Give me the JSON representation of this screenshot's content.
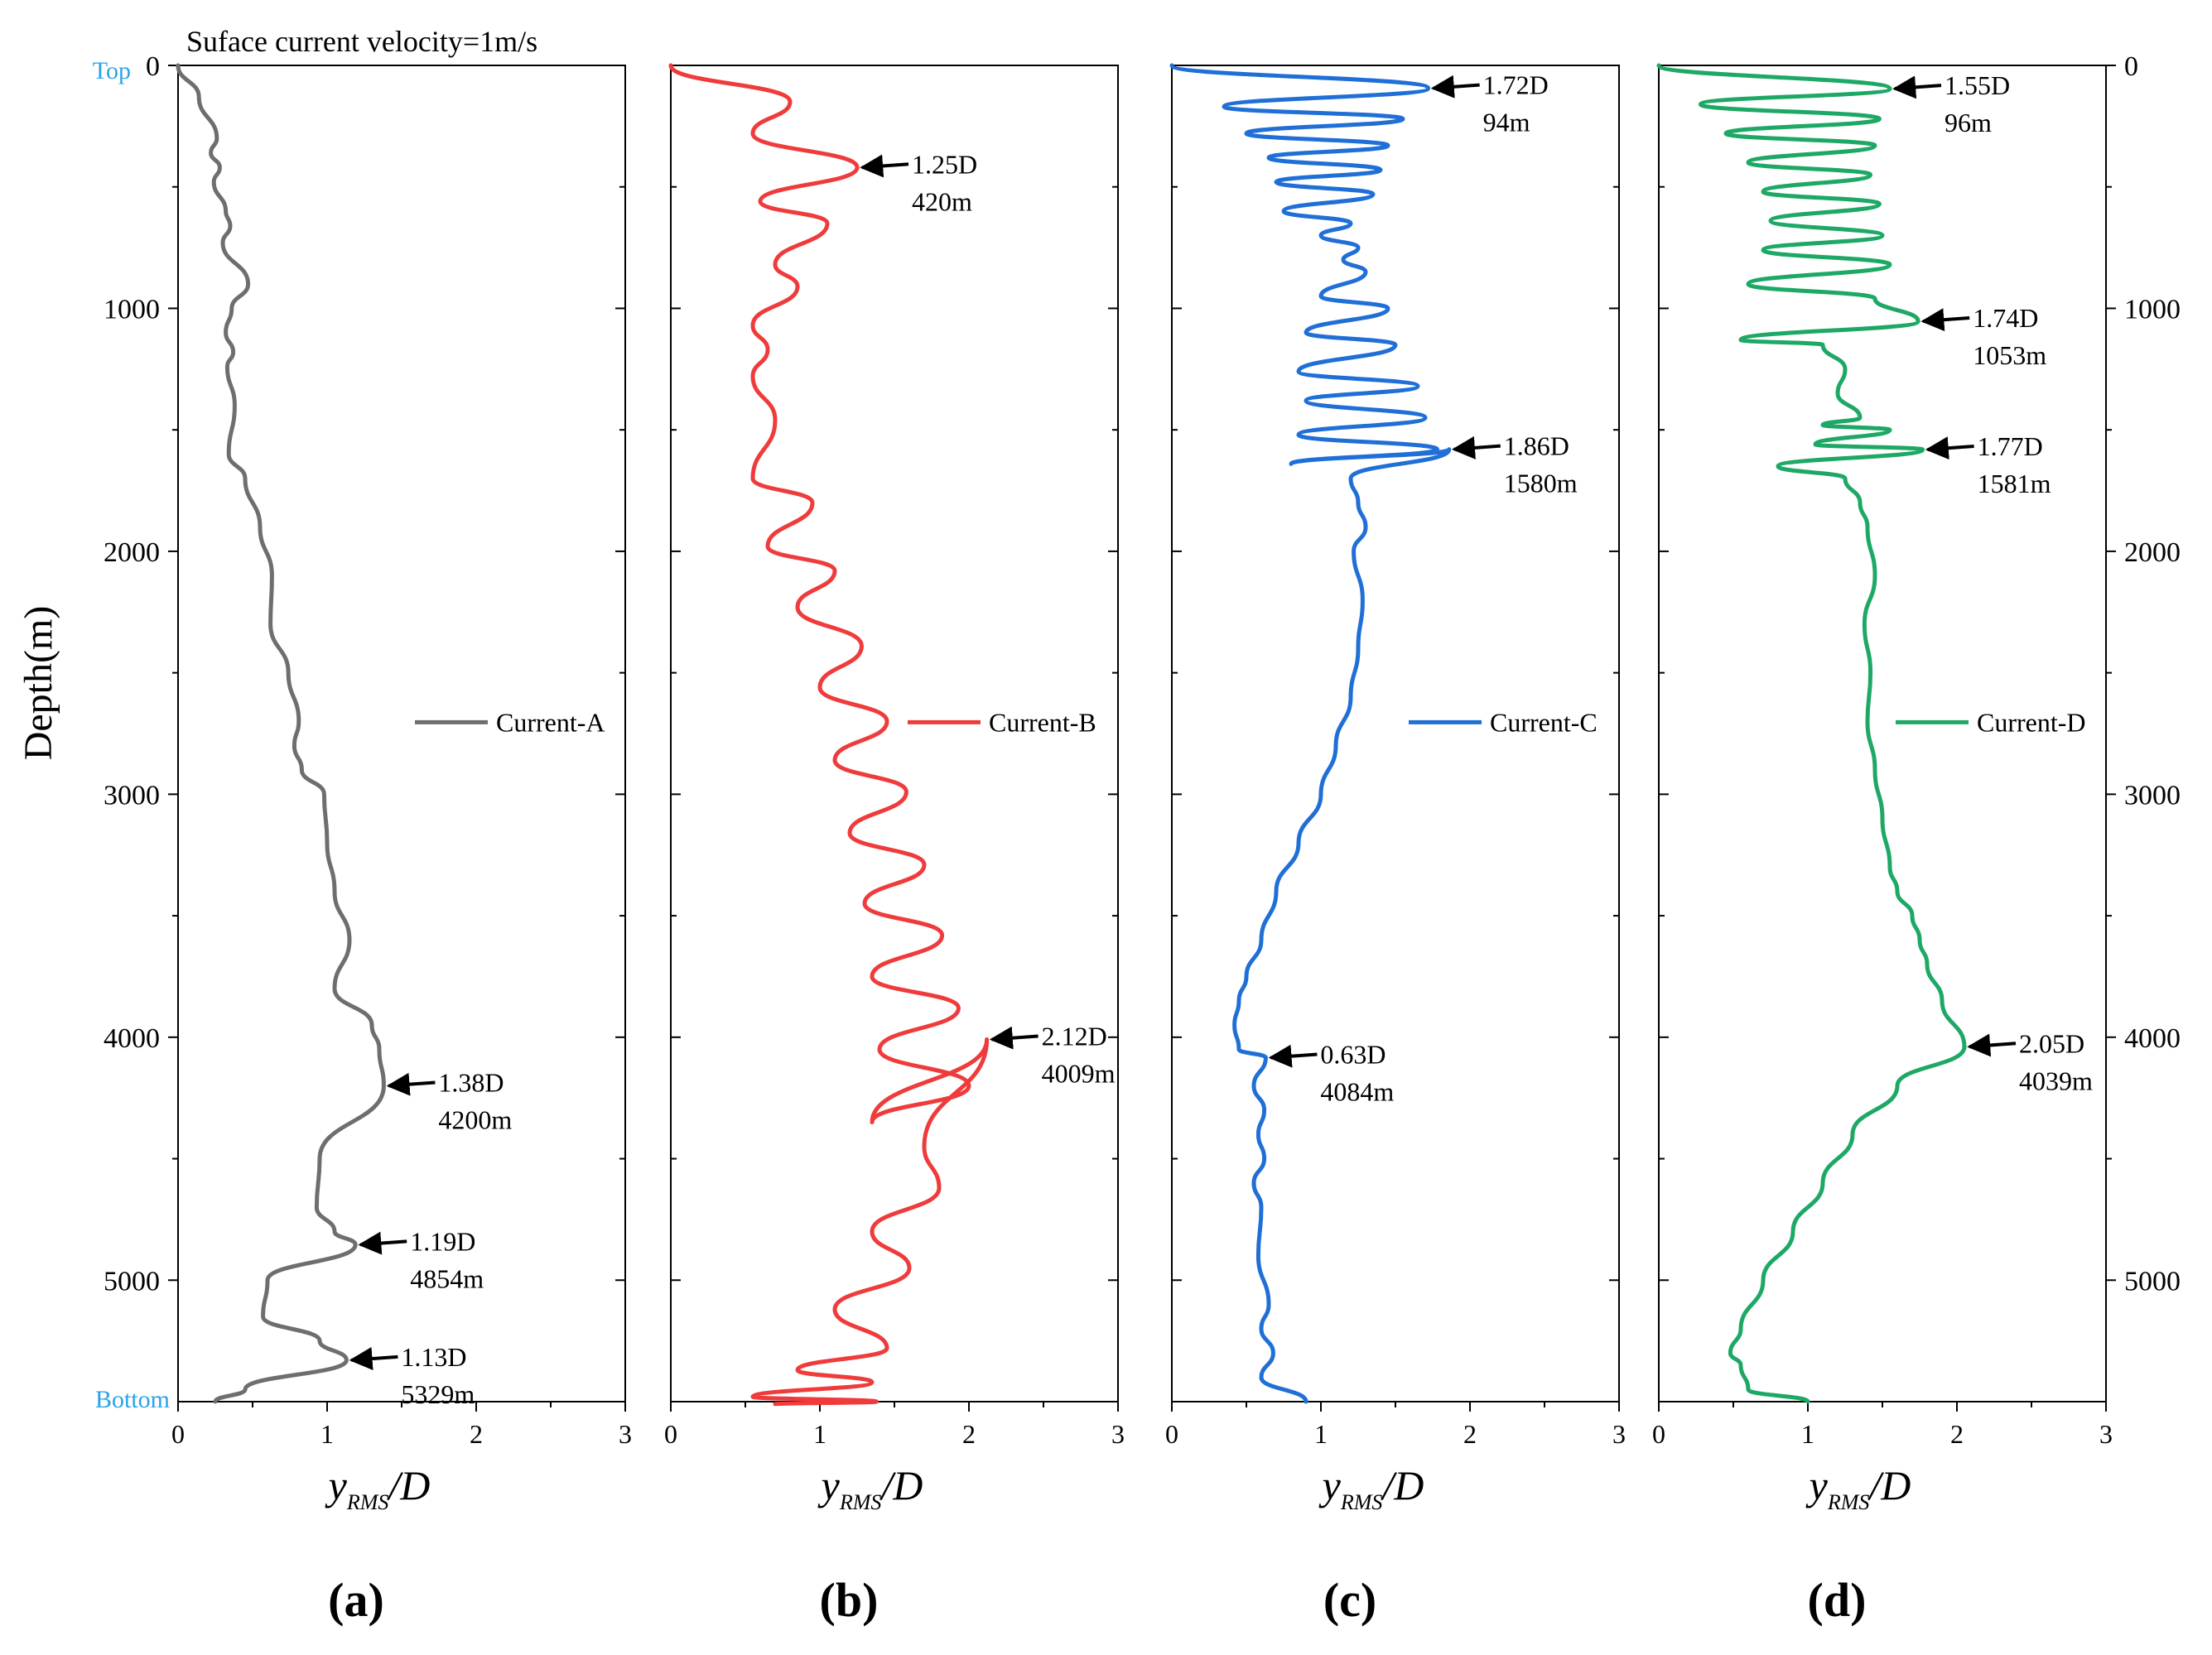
{
  "figure": {
    "title": "Suface current velocity=1m/s",
    "top_label": "Top",
    "bottom_label": "Bottom",
    "label_color": "#29a3e8",
    "ylabel": "Depth(m)"
  },
  "chart_data": [
    {
      "type": "line",
      "panel_label": "(a)",
      "xlabel_main": "y",
      "xlabel_sub": "RMS",
      "xlabel_tail": "/D",
      "xlim": [
        0,
        3
      ],
      "ylim": [
        0,
        5500
      ],
      "xticks": [
        "0",
        "1",
        "2",
        "3"
      ],
      "yticks": [
        "0",
        "1000",
        "2000",
        "3000",
        "4000",
        "5000"
      ],
      "legend": "Current-A",
      "color": "#6e6e6e",
      "series": [
        {
          "name": "Current-A",
          "x": [
            0,
            0.14,
            0.26,
            0.22,
            0.28,
            0.24,
            0.32,
            0.35,
            0.3,
            0.47,
            0.36,
            0.32,
            0.37,
            0.33,
            0.38,
            0.34,
            0.45,
            0.55,
            0.63,
            0.62,
            0.74,
            0.81,
            0.78,
            0.83,
            0.98,
            1.0,
            1.05,
            1.15,
            1.05,
            1.3,
            1.35,
            1.38,
            0.95,
            0.93,
            1.05,
            1.19,
            0.6,
            0.57,
            0.95,
            1.13,
            0.45,
            0.25
          ],
          "y": [
            0,
            130,
            300,
            360,
            420,
            480,
            600,
            660,
            730,
            900,
            1000,
            1100,
            1180,
            1240,
            1400,
            1600,
            1700,
            1900,
            2100,
            2300,
            2500,
            2700,
            2800,
            2900,
            3000,
            3200,
            3400,
            3600,
            3800,
            3950,
            4050,
            4200,
            4500,
            4700,
            4800,
            4854,
            5000,
            5150,
            5250,
            5329,
            5450,
            5500
          ]
        }
      ],
      "annotations": [
        {
          "x": 1.38,
          "y": 4200,
          "value": "1.38D",
          "depth": "4200m"
        },
        {
          "x": 1.19,
          "y": 4854,
          "value": "1.19D",
          "depth": "4854m"
        },
        {
          "x": 1.13,
          "y": 5329,
          "value": "1.13D",
          "depth": "5329m"
        }
      ]
    },
    {
      "type": "line",
      "panel_label": "(b)",
      "xlabel_main": "y",
      "xlabel_sub": "RMS",
      "xlabel_tail": "/D",
      "xlim": [
        0,
        3
      ],
      "ylim": [
        0,
        5500
      ],
      "xticks": [
        "0",
        "1",
        "2",
        "3"
      ],
      "yticks": [
        "0",
        "1000",
        "2000",
        "3000",
        "4000",
        "5000"
      ],
      "legend": "Current-B",
      "color": "#ef3b3b",
      "series": [
        {
          "name": "Current-B",
          "x": [
            0,
            0.8,
            0.55,
            1.25,
            0.6,
            1.05,
            0.7,
            0.85,
            0.55,
            0.65,
            0.55,
            0.7,
            0.55,
            0.95,
            0.65,
            1.1,
            0.85,
            1.28,
            1.0,
            1.45,
            1.1,
            1.58,
            1.2,
            1.7,
            1.3,
            1.82,
            1.35,
            1.93,
            1.4,
            2.0,
            1.35,
            2.12,
            1.7,
            1.8,
            1.35,
            1.6,
            1.1,
            1.45,
            0.85,
            1.35,
            0.55,
            1.38,
            0.7
          ],
          "y": [
            0,
            150,
            280,
            420,
            560,
            650,
            820,
            910,
            1070,
            1170,
            1280,
            1460,
            1700,
            1800,
            1980,
            2080,
            2230,
            2390,
            2560,
            2700,
            2860,
            2990,
            3160,
            3290,
            3450,
            3580,
            3750,
            3880,
            4050,
            4200,
            4350,
            4009,
            4450,
            4620,
            4800,
            4950,
            5120,
            5280,
            5370,
            5420,
            5480,
            5500,
            5510
          ]
        }
      ],
      "annotations": [
        {
          "x": 1.25,
          "y": 420,
          "value": "1.25D",
          "depth": "420m"
        },
        {
          "x": 2.12,
          "y": 4009,
          "value": "2.12D",
          "depth": "4009m"
        }
      ]
    },
    {
      "type": "line",
      "panel_label": "(c)",
      "xlabel_main": "y",
      "xlabel_sub": "RMS",
      "xlabel_tail": "/D",
      "xlim": [
        0,
        3
      ],
      "ylim": [
        0,
        5500
      ],
      "xticks": [
        "0",
        "1",
        "2",
        "3"
      ],
      "yticks": [
        "0",
        "1000",
        "2000",
        "3000",
        "4000",
        "5000"
      ],
      "legend": "Current-C",
      "color": "#1f6fd6",
      "series": [
        {
          "name": "Current-C",
          "x": [
            0,
            1.72,
            0.35,
            1.55,
            0.5,
            1.45,
            0.65,
            1.4,
            0.7,
            1.35,
            0.75,
            1.2,
            1.0,
            1.25,
            1.15,
            1.3,
            1.0,
            1.45,
            0.9,
            1.5,
            0.85,
            1.65,
            0.9,
            1.7,
            0.85,
            1.78,
            0.8,
            1.86,
            1.2,
            1.25,
            1.3,
            1.22,
            1.28,
            1.25,
            1.2,
            1.1,
            1.0,
            0.85,
            0.7,
            0.6,
            0.5,
            0.45,
            0.42,
            0.45,
            0.63,
            0.55,
            0.62,
            0.58,
            0.62,
            0.55,
            0.6,
            0.58,
            0.65,
            0.6,
            0.68,
            0.6,
            0.9
          ],
          "y": [
            0,
            94,
            170,
            220,
            280,
            330,
            380,
            430,
            480,
            530,
            600,
            650,
            700,
            750,
            800,
            850,
            950,
            1000,
            1100,
            1150,
            1260,
            1320,
            1380,
            1450,
            1520,
            1580,
            1640,
            1580,
            1700,
            1800,
            1900,
            2000,
            2200,
            2400,
            2600,
            2800,
            3000,
            3200,
            3400,
            3600,
            3750,
            3850,
            3950,
            4050,
            4084,
            4200,
            4300,
            4400,
            4500,
            4600,
            4700,
            4900,
            5100,
            5200,
            5300,
            5400,
            5500
          ]
        }
      ],
      "annotations": [
        {
          "x": 1.72,
          "y": 94,
          "value": "1.72D",
          "depth": "94m"
        },
        {
          "x": 1.86,
          "y": 1580,
          "value": "1.86D",
          "depth": "1580m"
        },
        {
          "x": 0.63,
          "y": 4084,
          "value": "0.63D",
          "depth": "4084m"
        }
      ]
    },
    {
      "type": "line",
      "panel_label": "(d)",
      "xlabel_main": "y",
      "xlabel_sub": "RMS",
      "xlabel_tail": "/D",
      "xlim": [
        0,
        3
      ],
      "ylim": [
        0,
        5500
      ],
      "xticks": [
        "0",
        "1",
        "2",
        "3"
      ],
      "yticks": [
        "0",
        "1000",
        "2000",
        "3000",
        "4000",
        "5000"
      ],
      "legend": "Current-D",
      "color": "#1ea865",
      "series": [
        {
          "name": "Current-D",
          "x": [
            0,
            1.55,
            0.28,
            1.48,
            0.45,
            1.45,
            0.6,
            1.42,
            0.7,
            1.48,
            0.75,
            1.5,
            0.7,
            1.55,
            0.6,
            1.45,
            1.74,
            0.55,
            1.1,
            1.25,
            1.2,
            1.35,
            1.1,
            1.55,
            1.05,
            1.77,
            0.8,
            1.25,
            1.35,
            1.4,
            1.45,
            1.38,
            1.42,
            1.4,
            1.45,
            1.5,
            1.55,
            1.6,
            1.7,
            1.75,
            1.8,
            1.9,
            2.05,
            1.6,
            1.3,
            1.1,
            0.9,
            0.7,
            0.55,
            0.48,
            0.55,
            0.6,
            1.0
          ],
          "y": [
            0,
            96,
            160,
            220,
            280,
            330,
            400,
            450,
            520,
            570,
            640,
            700,
            760,
            820,
            900,
            960,
            1053,
            1130,
            1150,
            1250,
            1350,
            1450,
            1480,
            1500,
            1560,
            1581,
            1650,
            1700,
            1800,
            1900,
            2100,
            2300,
            2500,
            2700,
            2900,
            3100,
            3300,
            3400,
            3500,
            3600,
            3700,
            3850,
            4039,
            4200,
            4400,
            4600,
            4800,
            5000,
            5200,
            5300,
            5350,
            5450,
            5500
          ]
        }
      ],
      "annotations": [
        {
          "x": 1.55,
          "y": 96,
          "value": "1.55D",
          "depth": "96m"
        },
        {
          "x": 1.74,
          "y": 1053,
          "value": "1.74D",
          "depth": "1053m"
        },
        {
          "x": 1.77,
          "y": 1581,
          "value": "1.77D",
          "depth": "1581m"
        },
        {
          "x": 2.05,
          "y": 4039,
          "value": "2.05D",
          "depth": "4039m"
        }
      ]
    }
  ]
}
